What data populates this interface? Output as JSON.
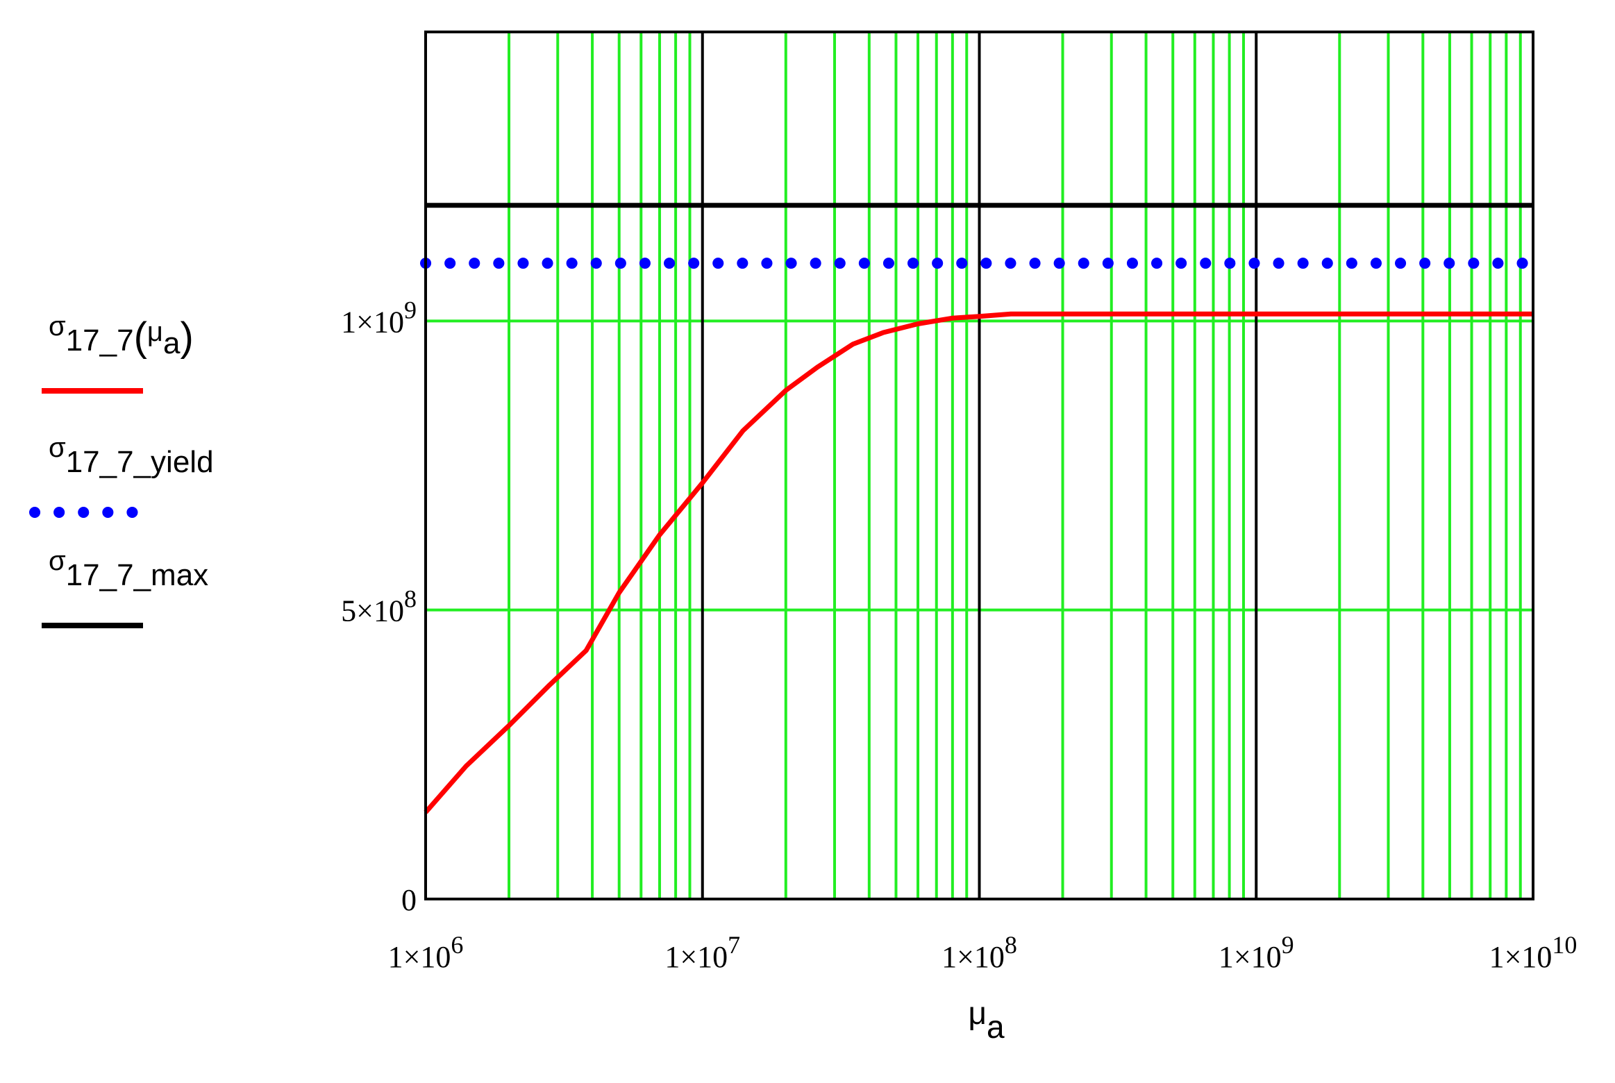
{
  "chart_data": {
    "type": "line",
    "x_scale": "log",
    "xlim": [
      1000000,
      10000000000
    ],
    "ylim": [
      0,
      1500000000
    ],
    "grid": true,
    "legend_position": "left",
    "xlabel": {
      "main": "μ",
      "sub": "a"
    },
    "ylabel": "",
    "x_ticks": [
      {
        "value": 1000000,
        "mantissa": "1×10",
        "exp": "6"
      },
      {
        "value": 10000000,
        "mantissa": "1×10",
        "exp": "7"
      },
      {
        "value": 100000000,
        "mantissa": "1×10",
        "exp": "8"
      },
      {
        "value": 1000000000,
        "mantissa": "1×10",
        "exp": "9"
      },
      {
        "value": 10000000000,
        "mantissa": "1×10",
        "exp": "10"
      }
    ],
    "y_ticks": [
      {
        "value": 0,
        "mantissa": "0",
        "exp": ""
      },
      {
        "value": 500000000,
        "mantissa": "5×10",
        "exp": "8"
      },
      {
        "value": 1000000000,
        "mantissa": "1×10",
        "exp": "9"
      }
    ],
    "y_minor_gridlines": [
      500000000,
      1000000000
    ],
    "y_major_gridlines": [
      1200000000
    ],
    "series": [
      {
        "key": "sigma",
        "legend": {
          "main": "σ",
          "sub": "17_7",
          "arg_main": "μ",
          "arg_sub": "a"
        },
        "color": "#ff0000",
        "style": "solid",
        "x": [
          1000000,
          1400000,
          2000000,
          2800000,
          3800000,
          5000000,
          7000000,
          10000000,
          14000000,
          20000000,
          26000000,
          35000000,
          45000000,
          60000000,
          80000000,
          100000000,
          130000000,
          1000000000,
          10000000000
        ],
        "y": [
          150000000,
          230000000,
          300000000,
          370000000,
          430000000,
          530000000,
          630000000,
          720000000,
          810000000,
          880000000,
          920000000,
          960000000,
          980000000,
          995000000,
          1005000000,
          1008000000,
          1012000000,
          1012000000,
          1012000000
        ]
      },
      {
        "key": "sigma_yield",
        "legend": {
          "main": "σ",
          "sub": "17_7_yield"
        },
        "color": "#0000ff",
        "style": "dotted",
        "x": [
          1000000,
          10000000000
        ],
        "y": [
          1100000000,
          1100000000
        ]
      },
      {
        "key": "sigma_max",
        "legend": {
          "main": "σ",
          "sub": "17_7_max"
        },
        "color": "#000000",
        "style": "solid",
        "x": [
          1000000,
          10000000000
        ],
        "y": [
          1200000000,
          1200000000
        ]
      }
    ]
  }
}
